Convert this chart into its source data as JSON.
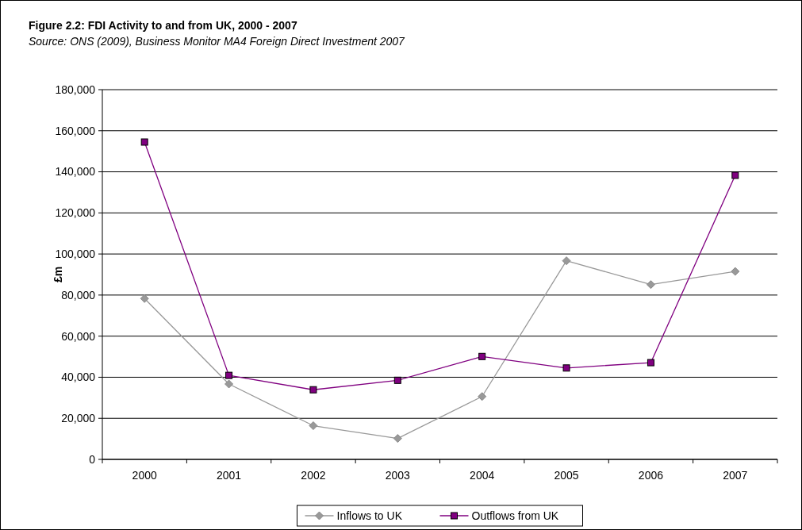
{
  "chart_data": {
    "type": "line",
    "title": "Figure 2.2: FDI Activity to and from UK, 2000 - 2007",
    "subtitle": "Source: ONS (2009), Business Monitor MA4 Foreign Direct Investment 2007",
    "ylabel": "£m",
    "categories": [
      "2000",
      "2001",
      "2002",
      "2003",
      "2004",
      "2005",
      "2006",
      "2007"
    ],
    "series": [
      {
        "name": "Inflows to UK",
        "color": "#999999",
        "marker": "diamond",
        "values": [
          78300,
          36700,
          16400,
          10200,
          30600,
          96700,
          85100,
          91500
        ]
      },
      {
        "name": "Outflows from UK",
        "color": "#800080",
        "marker": "square",
        "values": [
          154500,
          40900,
          33900,
          38500,
          50100,
          44500,
          47100,
          138300
        ]
      }
    ],
    "ylim": [
      0,
      180000
    ],
    "yticks": [
      0,
      {
        "value": 20000,
        "label": "20,000"
      },
      {
        "value": 40000,
        "label": "40,000"
      },
      {
        "value": 60000,
        "label": "60,000"
      },
      {
        "value": 80000,
        "label": "80,000"
      },
      {
        "value": 100000,
        "label": "100,000"
      },
      {
        "value": 120000,
        "label": "120,000"
      },
      {
        "value": 140000,
        "label": "140,000"
      },
      {
        "value": 160000,
        "label": "160,000"
      },
      {
        "value": 180000,
        "label": "180,000"
      }
    ],
    "grid": "y",
    "legend": "bottom"
  }
}
